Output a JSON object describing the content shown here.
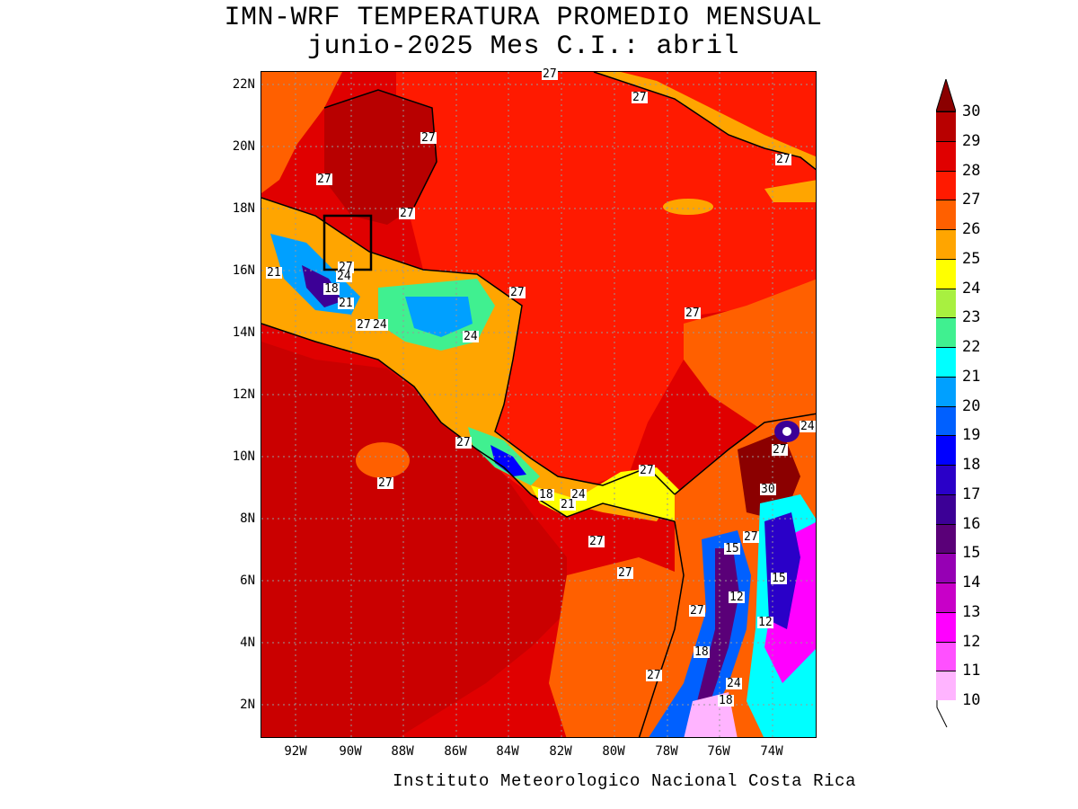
{
  "title": {
    "line1": "IMN-WRF  TEMPERATURA PROMEDIO MENSUAL",
    "line2": "junio-2025 Mes C.I.: abril"
  },
  "footer": "Instituto Meteorologico Nacional Costa Rica",
  "map": {
    "lat_ticks": [
      "22N",
      "20N",
      "18N",
      "16N",
      "14N",
      "12N",
      "10N",
      "8N",
      "6N",
      "4N",
      "2N"
    ],
    "lon_ticks": [
      "92W",
      "90W",
      "88W",
      "86W",
      "84W",
      "82W",
      "80W",
      "78W",
      "76W",
      "74W"
    ],
    "contour_labels": [
      {
        "text": "27",
        "id": "c1"
      },
      {
        "text": "27",
        "id": "c2"
      },
      {
        "text": "27",
        "id": "c3"
      },
      {
        "text": "27",
        "id": "c4"
      },
      {
        "text": "27",
        "id": "c5"
      },
      {
        "text": "27",
        "id": "c6"
      },
      {
        "text": "21",
        "id": "c7"
      },
      {
        "text": "27",
        "id": "c8"
      },
      {
        "text": "24",
        "id": "c9"
      },
      {
        "text": "18",
        "id": "c10"
      },
      {
        "text": "21",
        "id": "c11"
      },
      {
        "text": "27",
        "id": "c12"
      },
      {
        "text": "27",
        "id": "c13"
      },
      {
        "text": "24",
        "id": "c14"
      },
      {
        "text": "24",
        "id": "c15"
      },
      {
        "text": "27",
        "id": "c16"
      },
      {
        "text": "24",
        "id": "c17"
      },
      {
        "text": "27",
        "id": "c18"
      },
      {
        "text": "27",
        "id": "c19"
      },
      {
        "text": "27",
        "id": "c20"
      },
      {
        "text": "18",
        "id": "c21"
      },
      {
        "text": "24",
        "id": "c22"
      },
      {
        "text": "21",
        "id": "c23"
      },
      {
        "text": "30",
        "id": "c24"
      },
      {
        "text": "27",
        "id": "c25"
      },
      {
        "text": "27",
        "id": "c26"
      },
      {
        "text": "15",
        "id": "c27"
      },
      {
        "text": "27",
        "id": "c28"
      },
      {
        "text": "15",
        "id": "c29"
      },
      {
        "text": "12",
        "id": "c30"
      },
      {
        "text": "27",
        "id": "c31"
      },
      {
        "text": "12",
        "id": "c32"
      },
      {
        "text": "18",
        "id": "c33"
      },
      {
        "text": "27",
        "id": "c34"
      },
      {
        "text": "24",
        "id": "c35"
      },
      {
        "text": "18",
        "id": "c36"
      },
      {
        "text": "27",
        "id": "c37"
      }
    ]
  },
  "colorbar": {
    "entries": [
      {
        "value": "30",
        "color": "#8b0000"
      },
      {
        "value": "29",
        "color": "#b80000"
      },
      {
        "value": "28",
        "color": "#e00000"
      },
      {
        "value": "27",
        "color": "#ff1a00"
      },
      {
        "value": "26",
        "color": "#ff6000"
      },
      {
        "value": "25",
        "color": "#ffa500"
      },
      {
        "value": "24",
        "color": "#ffff00"
      },
      {
        "value": "23",
        "color": "#a8f040"
      },
      {
        "value": "22",
        "color": "#40f090"
      },
      {
        "value": "21",
        "color": "#00ffff"
      },
      {
        "value": "20",
        "color": "#00a0ff"
      },
      {
        "value": "19",
        "color": "#0060ff"
      },
      {
        "value": "18",
        "color": "#0000ff"
      },
      {
        "value": "17",
        "color": "#2a00c8"
      },
      {
        "value": "16",
        "color": "#3c0096"
      },
      {
        "value": "15",
        "color": "#5a0078"
      },
      {
        "value": "14",
        "color": "#9600b4"
      },
      {
        "value": "13",
        "color": "#c800c8"
      },
      {
        "value": "12",
        "color": "#ff00ff"
      },
      {
        "value": "11",
        "color": "#ff50ff"
      },
      {
        "value": "10",
        "color": "#ffb4ff"
      }
    ]
  }
}
